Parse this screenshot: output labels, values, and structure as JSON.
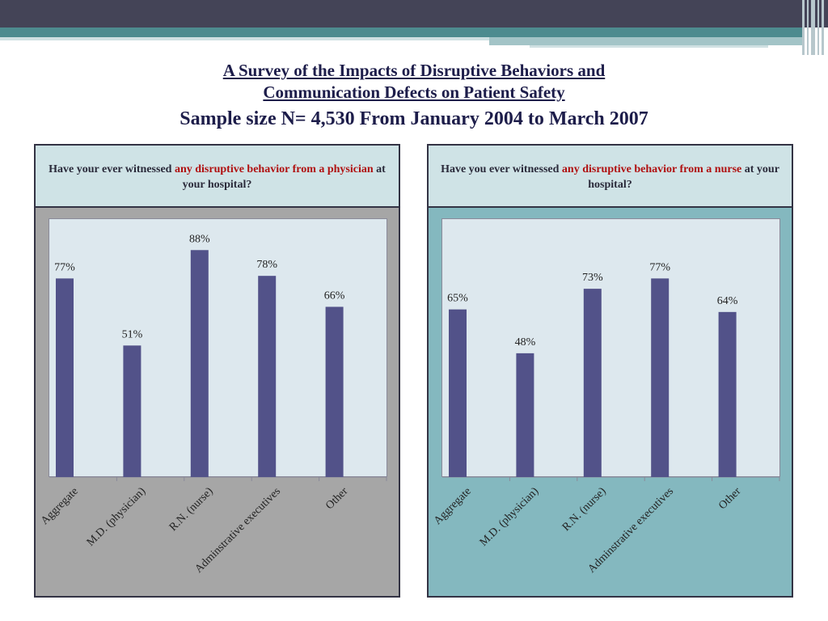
{
  "slide": {
    "title_line1": "A Survey of the Impacts of Disruptive Behaviors and",
    "title_line2": "Communication Defects on Patient Safety",
    "subtitle": "Sample size N= 4,530 From January 2004 to March 2007"
  },
  "panels": [
    {
      "q_pre": "Have your ever witnessed ",
      "q_red": "any disruptive behavior from a physician",
      "q_post": " at your hospital?"
    },
    {
      "q_pre": "Have you ever witnessed ",
      "q_red": "any disruptive behavior from a nurse",
      "q_post": " at your hospital?"
    }
  ],
  "colors": {
    "bar": "#525289",
    "accent_red": "#b01010",
    "title": "#1d1d4a"
  },
  "chart_data": [
    {
      "type": "bar",
      "categories": [
        "Aggregate",
        "M.D. (physician)",
        "R.N. (nurse)",
        "Adminstrative executives",
        "Other"
      ],
      "values": [
        77,
        51,
        88,
        78,
        66
      ],
      "data_labels": [
        "77%",
        "51%",
        "88%",
        "78%",
        "66%"
      ],
      "ylim": [
        0,
        100
      ],
      "grid": false
    },
    {
      "type": "bar",
      "categories": [
        "Aggregate",
        "M.D. (physician)",
        "R.N. (nurse)",
        "Adminstrative executives",
        "Other"
      ],
      "values": [
        65,
        48,
        73,
        77,
        64
      ],
      "data_labels": [
        "65%",
        "48%",
        "73%",
        "77%",
        "64%"
      ],
      "ylim": [
        0,
        100
      ],
      "grid": false
    }
  ]
}
